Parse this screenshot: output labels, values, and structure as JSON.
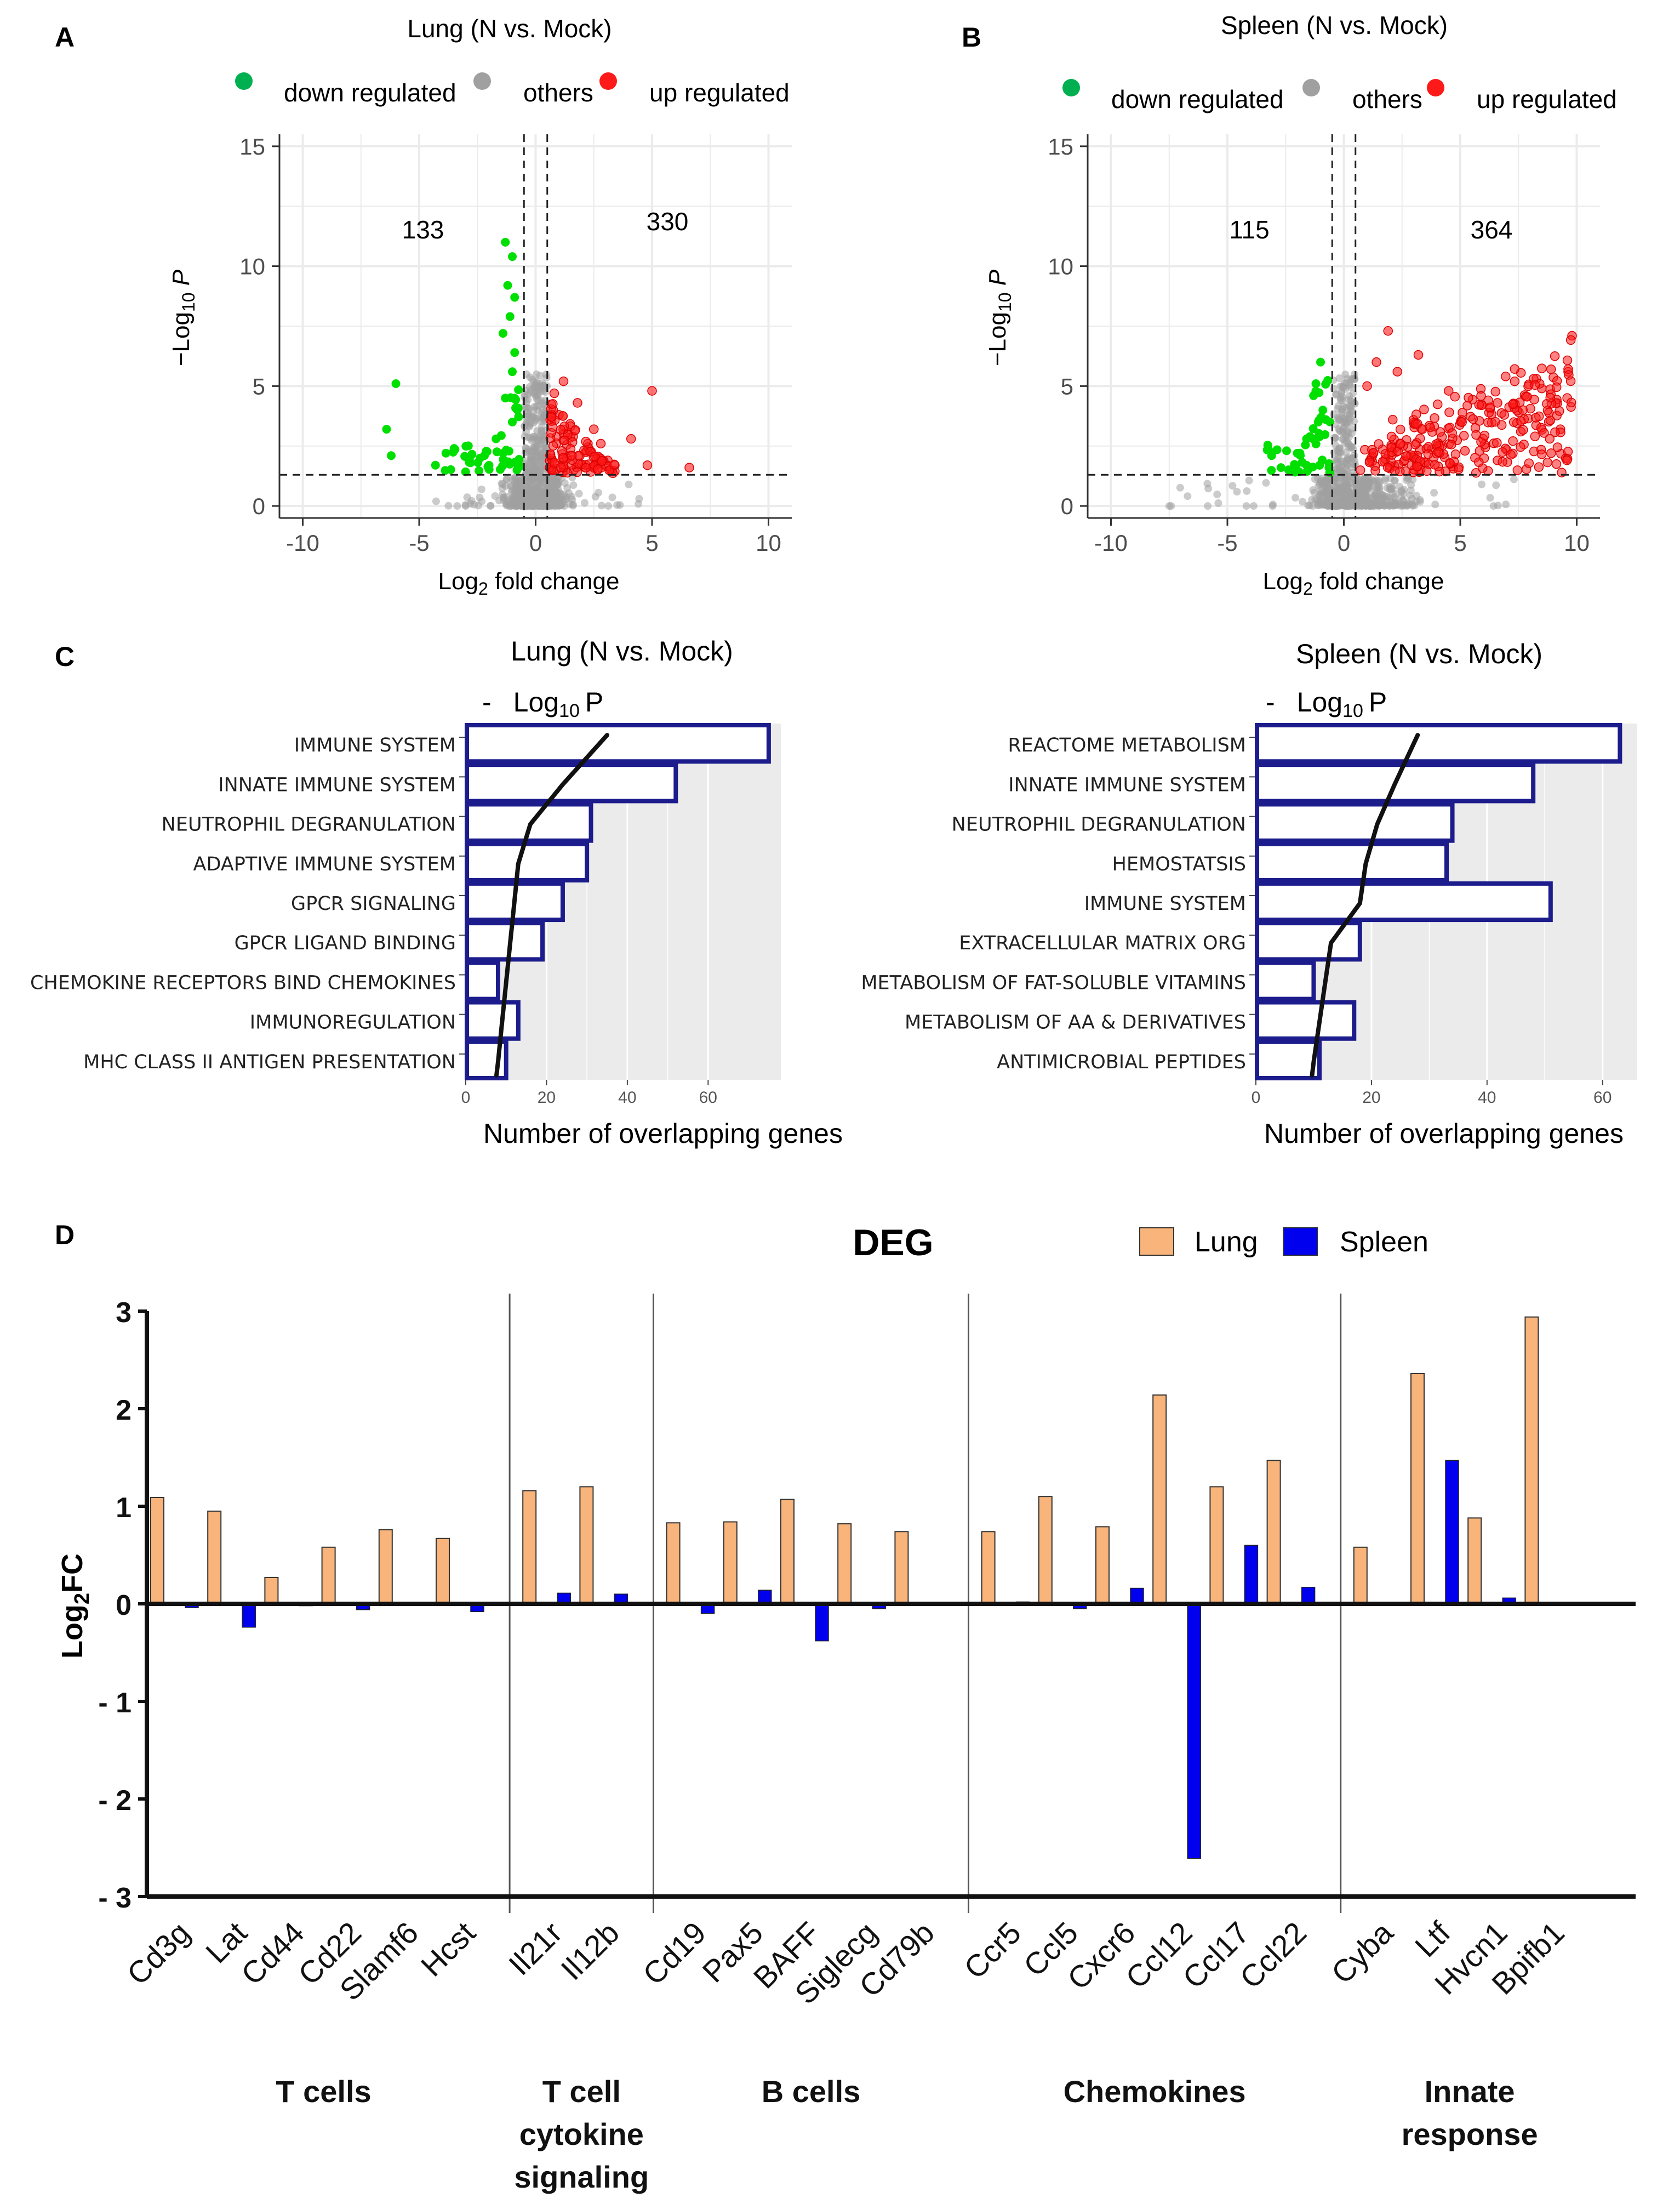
{
  "panels": {
    "A": {
      "letter": "A",
      "title": "Lung (N vs. Mock)",
      "counts": {
        "down": "133",
        "up": "330"
      }
    },
    "B": {
      "letter": "B",
      "title": "Spleen (N vs. Mock)",
      "counts": {
        "down": "115",
        "up": "364"
      }
    },
    "C": {
      "letter": "C",
      "left_title": "Lung (N vs. Mock)",
      "right_title": "Spleen (N vs. Mock)",
      "legend_dash": "-",
      "legend_log": "Log",
      "legend_sub": "10",
      "legend_p": "P"
    },
    "D": {
      "letter": "D",
      "title": "DEG"
    }
  },
  "volcano": {
    "legend": {
      "down": "down regulated",
      "others": "others",
      "up": "up regulated"
    },
    "xlabel_prefix": "Log",
    "xlabel_sub": "2",
    "xlabel_suffix": " fold change",
    "ylabel_prefix": "−Log",
    "ylabel_sub": "10",
    "ylabel_suffix": " P",
    "xticks": [
      "-10",
      "-5",
      "0",
      "5",
      "10"
    ],
    "yticks": [
      "0",
      "5",
      "10",
      "15"
    ]
  },
  "colors": {
    "down": "#00e000",
    "down_legend": "#00b050",
    "others": "#a0a0a0",
    "up": "#ff1a1a",
    "enrich_bar": "#1c1c8c",
    "lung": "#f8b47a",
    "spleen": "#0000ee",
    "panel_bg": "#ebebeb"
  },
  "enrichment_common": {
    "xlabel": "Number of overlapping genes",
    "xticks": [
      "0",
      "20",
      "40",
      "60"
    ]
  },
  "chart_data": [
    {
      "type": "scatter",
      "id": "volcano-lung",
      "title": "Lung (N vs. Mock)",
      "xlabel": "Log2 fold change",
      "ylabel": "-Log10 P",
      "xlim": [
        -11,
        11
      ],
      "ylim": [
        -0.5,
        15.5
      ],
      "fc_cutoffs": [
        -0.5,
        0.5
      ],
      "p_cutoff": 1.3,
      "down_count": 133,
      "up_count": 330,
      "highlight_points": {
        "down": [
          [
            -6,
            5.1
          ],
          [
            -6.4,
            3.2
          ],
          [
            -6.2,
            2.1
          ],
          [
            -3.5,
            2.4
          ],
          [
            -4.3,
            1.7
          ],
          [
            -2.8,
            1.8
          ],
          [
            -2.2,
            2.1
          ],
          [
            -1.3,
            11
          ],
          [
            -1,
            10.4
          ],
          [
            -1.2,
            9.2
          ],
          [
            -0.9,
            8.7
          ],
          [
            -1.1,
            7.9
          ],
          [
            -1.4,
            7.2
          ],
          [
            -0.9,
            6.4
          ],
          [
            -1,
            5.6
          ],
          [
            -1.3,
            4.5
          ],
          [
            -1,
            3.5
          ],
          [
            -1.7,
            2.8
          ],
          [
            -1.4,
            2.2
          ],
          [
            -2,
            1.7
          ],
          [
            -0.8,
            1.5
          ]
        ],
        "up": [
          [
            5,
            4.8
          ],
          [
            4.8,
            1.7
          ],
          [
            6.6,
            1.6
          ],
          [
            4.1,
            2.8
          ],
          [
            1.2,
            5.2
          ],
          [
            1.8,
            4.3
          ],
          [
            2.5,
            3.2
          ],
          [
            3.1,
            1.9
          ],
          [
            2.2,
            2.3
          ],
          [
            1,
            3.8
          ],
          [
            0.8,
            4.7
          ],
          [
            1.5,
            2.1
          ],
          [
            3.4,
            1.7
          ],
          [
            2.8,
            2.6
          ],
          [
            1.3,
            1.5
          ]
        ]
      }
    },
    {
      "type": "scatter",
      "id": "volcano-spleen",
      "title": "Spleen (N vs. Mock)",
      "xlabel": "Log2 fold change",
      "ylabel": "-Log10 P",
      "xlim": [
        -11,
        11
      ],
      "ylim": [
        -0.5,
        15.5
      ],
      "fc_cutoffs": [
        -0.5,
        0.5
      ],
      "p_cutoff": 1.3,
      "down_count": 115,
      "up_count": 364,
      "highlight_points": {
        "down": [
          [
            -1,
            6
          ],
          [
            -1.2,
            5.1
          ],
          [
            -1.3,
            4.6
          ],
          [
            -0.9,
            4
          ],
          [
            -1.1,
            3.5
          ],
          [
            -1.6,
            2.8
          ],
          [
            -2,
            2.2
          ],
          [
            -3.1,
            2.1
          ],
          [
            -2.7,
            1.6
          ],
          [
            -1.6,
            1.7
          ]
        ],
        "up": [
          [
            9.8,
            7.1
          ],
          [
            8.9,
            5.7
          ],
          [
            8.5,
            4.9
          ],
          [
            6.6,
            4.3
          ],
          [
            5.9,
            4.2
          ],
          [
            4.5,
            4.8
          ],
          [
            3.2,
            6.3
          ],
          [
            1.9,
            7.3
          ],
          [
            1.4,
            6
          ],
          [
            2.3,
            5.6
          ],
          [
            1,
            5
          ],
          [
            7.6,
            3.1
          ],
          [
            6.6,
            1.9
          ],
          [
            5.2,
            2.3
          ],
          [
            4,
            2.5
          ],
          [
            3,
            2.1
          ],
          [
            2.1,
            3.6
          ],
          [
            8.9,
            2.2
          ],
          [
            9.3,
            3.2
          ]
        ]
      }
    },
    {
      "type": "bar",
      "id": "enrichment-lung",
      "orientation": "horizontal",
      "title": "Lung (N vs. Mock)",
      "xlabel": "Number of overlapping genes",
      "xlim": [
        0,
        78
      ],
      "categories": [
        "IMMUNE SYSTEM",
        "INNATE IMMUNE SYSTEM",
        "NEUTROPHIL DEGRANULATION",
        "ADAPTIVE IMMUNE SYSTEM",
        "GPCR SIGNALING",
        "GPCR LIGAND BINDING",
        "CHEMOKINE RECEPTORS BIND CHEMOKINES",
        "IMMUNOREGULATION",
        "MHC CLASS II ANTIGEN PRESENTATION"
      ],
      "values": [
        75,
        52,
        31,
        30,
        24,
        19,
        8,
        13,
        10
      ],
      "neglog10p": [
        35,
        24,
        16,
        13,
        12,
        11,
        10,
        9,
        8
      ]
    },
    {
      "type": "bar",
      "id": "enrichment-spleen",
      "orientation": "horizontal",
      "title": "Spleen (N vs. Mock)",
      "xlabel": "Number of overlapping genes",
      "xlim": [
        0,
        66
      ],
      "categories": [
        "REACTOME METABOLISM",
        "INNATE IMMUNE SYSTEM",
        "NEUTROPHIL DEGRANULATION",
        "HEMOSTATSIS",
        "IMMUNE SYSTEM",
        "EXTRACELLULAR MATRIX ORG",
        "METABOLISM OF FAT-SOLUBLE VITAMINS",
        "METABOLISM OF AA & DERIVATIVES",
        "ANTIMICROBIAL PEPTIDES"
      ],
      "values": [
        63,
        48,
        34,
        33,
        51,
        18,
        10,
        17,
        11
      ],
      "neglog10p": [
        28,
        24,
        21,
        19,
        18,
        13,
        12,
        11,
        10
      ]
    },
    {
      "type": "bar",
      "id": "deg-log2fc",
      "title": "DEG",
      "ylabel": "Log2FC",
      "ylim": [
        -3,
        3
      ],
      "yticks": [
        "3",
        "2",
        "1",
        "0",
        "- 1",
        "- 2",
        "- 3"
      ],
      "legend": [
        "Lung",
        "Spleen"
      ],
      "categories": [
        "Cd3g",
        "Lat",
        "Cd44",
        "Cd22",
        "Slamf6",
        "Hcst",
        "Il21r",
        "Il12b",
        "Cd19",
        "Pax5",
        "BAFF",
        "Siglecg",
        "Cd79b",
        "Ccr5",
        "Ccl5",
        "Cxcr6",
        "Ccl12",
        "Ccl17",
        "Ccl22",
        "Cyba",
        "Ltf",
        "Hvcn1",
        "Bpifb1"
      ],
      "series": [
        {
          "name": "Lung",
          "values": [
            1.09,
            0.95,
            0.27,
            0.58,
            0.76,
            0.67,
            1.16,
            1.2,
            0.83,
            0.84,
            1.07,
            0.82,
            0.74,
            0.74,
            1.1,
            0.79,
            2.14,
            1.2,
            1.47,
            0.58,
            2.36,
            0.88,
            2.94
          ]
        },
        {
          "name": "Spleen",
          "values": [
            -0.04,
            -0.24,
            -0.02,
            -0.06,
            0,
            -0.08,
            0.11,
            0.1,
            -0.1,
            0.14,
            -0.38,
            -0.05,
            0,
            0.02,
            -0.05,
            0.16,
            -2.61,
            0.6,
            0.17,
            0,
            1.47,
            0.06,
            0
          ]
        }
      ],
      "groups": [
        {
          "lines": [
            "T cells"
          ],
          "count": 6
        },
        {
          "lines": [
            "T cell",
            "cytokine",
            "signaling"
          ],
          "count": 2
        },
        {
          "lines": [
            "B cells"
          ],
          "count": 5
        },
        {
          "lines": [
            "Chemokines"
          ],
          "count": 6
        },
        {
          "lines": [
            "Innate",
            "response"
          ],
          "count": 4
        }
      ]
    }
  ]
}
